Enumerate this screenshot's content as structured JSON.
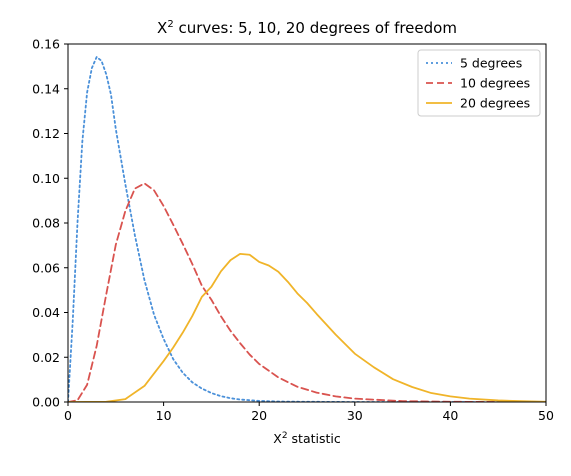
{
  "chart_data": {
    "type": "line",
    "title_prefix": "X",
    "title_sup": "2",
    "title_suffix": " curves: 5, 10, 20 degrees of freedom",
    "xlabel_prefix": "X",
    "xlabel_sup": "2",
    "xlabel_suffix": " statistic",
    "ylabel": "",
    "xlim": [
      0,
      50
    ],
    "ylim": [
      0,
      0.16
    ],
    "xticks": [
      0,
      10,
      20,
      30,
      40,
      50
    ],
    "xtick_labels": [
      "0",
      "10",
      "20",
      "30",
      "40",
      "50"
    ],
    "yticks": [
      0,
      0.02,
      0.04,
      0.06,
      0.08,
      0.1,
      0.12,
      0.14,
      0.16
    ],
    "ytick_labels": [
      "0.00",
      "0.02",
      "0.04",
      "0.06",
      "0.08",
      "0.10",
      "0.12",
      "0.14",
      "0.16"
    ],
    "grid": false,
    "legend_position": "top-right",
    "series": [
      {
        "name": "5 degrees",
        "df": 5,
        "color": "#4a90d9",
        "style": "dotted",
        "x": [
          0,
          0.5,
          1,
          1.5,
          2,
          2.5,
          3,
          3.5,
          4,
          4.5,
          5,
          6,
          7,
          8,
          9,
          10,
          11,
          12,
          13,
          14,
          15,
          16,
          17,
          18,
          20,
          22,
          25,
          30,
          35,
          40,
          45,
          50
        ],
        "y": [
          0,
          0.0366,
          0.0807,
          0.1165,
          0.1384,
          0.1493,
          0.1542,
          0.1525,
          0.1465,
          0.1373,
          0.122,
          0.0973,
          0.0744,
          0.0544,
          0.039,
          0.0282,
          0.0192,
          0.0131,
          0.0088,
          0.006,
          0.004,
          0.0026,
          0.0017,
          0.0011,
          0.0005,
          0.0002,
          0.0001,
          0.0,
          0.0,
          0.0,
          0.0,
          0.0
        ]
      },
      {
        "name": "10 degrees",
        "df": 10,
        "color": "#d9534f",
        "style": "dashed",
        "x": [
          0,
          1,
          2,
          3,
          4,
          5,
          6,
          7,
          8,
          9,
          10,
          11,
          12,
          13,
          14,
          15,
          16,
          17,
          18,
          19,
          20,
          22,
          24,
          26,
          28,
          30,
          35,
          40,
          45,
          50
        ],
        "y": [
          0,
          0.0008,
          0.0077,
          0.0251,
          0.0481,
          0.0703,
          0.0854,
          0.0954,
          0.0977,
          0.0946,
          0.0876,
          0.0793,
          0.0707,
          0.0617,
          0.052,
          0.0457,
          0.0383,
          0.0318,
          0.0263,
          0.0212,
          0.017,
          0.011,
          0.0068,
          0.0042,
          0.0025,
          0.0015,
          0.0004,
          0.0001,
          0.0,
          0.0
        ]
      },
      {
        "name": "20 degrees",
        "df": 20,
        "color": "#f0b429",
        "style": "solid",
        "x": [
          0,
          4,
          6,
          8,
          10,
          11,
          12,
          13,
          14,
          15,
          16,
          17,
          18,
          19,
          20,
          21,
          22,
          23,
          24,
          25,
          26,
          28,
          30,
          32,
          34,
          36,
          38,
          40,
          42,
          45,
          48,
          50
        ],
        "y": [
          0,
          0.0001,
          0.0013,
          0.0072,
          0.0183,
          0.0243,
          0.031,
          0.0384,
          0.047,
          0.0515,
          0.0584,
          0.0634,
          0.0662,
          0.0658,
          0.0626,
          0.061,
          0.0582,
          0.0537,
          0.0485,
          0.0443,
          0.0394,
          0.0301,
          0.0216,
          0.0155,
          0.0102,
          0.0067,
          0.004,
          0.0025,
          0.0015,
          0.0007,
          0.0003,
          0.0001
        ]
      }
    ]
  }
}
